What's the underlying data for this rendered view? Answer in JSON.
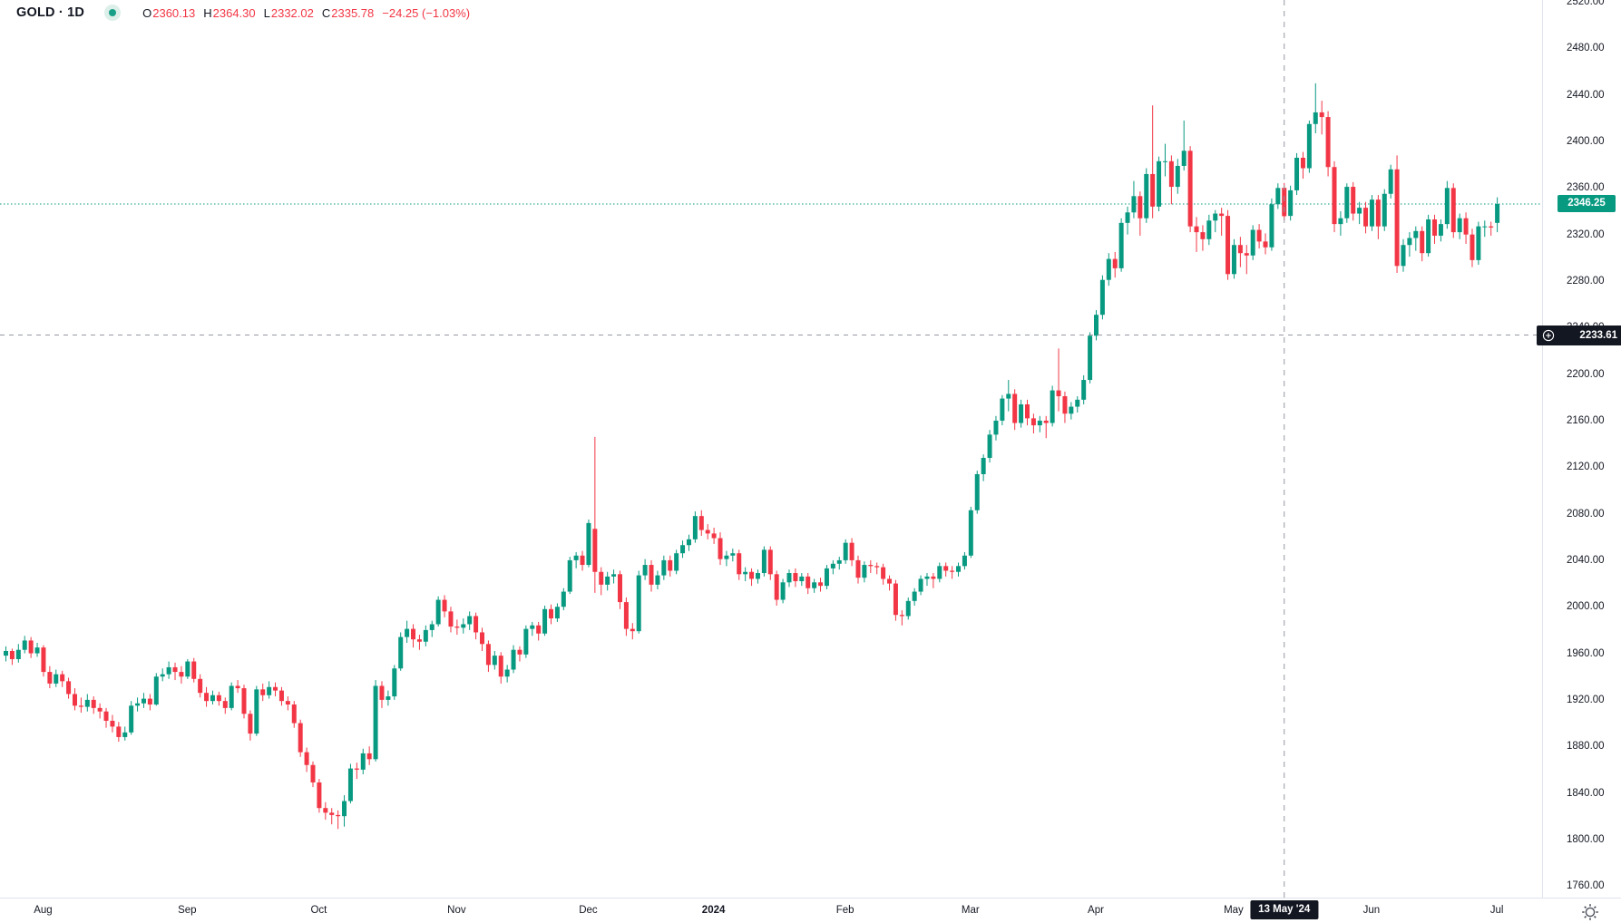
{
  "header": {
    "symbol_title": "GOLD · 1D",
    "ohlc": {
      "o_label": "O",
      "o": "2360.13",
      "h_label": "H",
      "h": "2364.30",
      "l_label": "L",
      "l": "2332.02",
      "c_label": "C",
      "c": "2335.78",
      "change": "−24.25 (−1.03%)"
    }
  },
  "price_axis": {
    "last_price_label": "2346.25"
  },
  "crosshair": {
    "price_label": "2233.61",
    "price_value": 2233.61,
    "date_label": "13 May '24",
    "candle_index": 204
  },
  "colors": {
    "up": "#089981",
    "down": "#f23645",
    "crosshair": "#9598a1",
    "badge_dark": "#131722",
    "axis_text": "#131722",
    "last_price_line": "#089981"
  },
  "chart_data": {
    "type": "candlestick",
    "title": "GOLD · 1D",
    "grid": false,
    "legend_position": "top-left",
    "price_axis_side": "right",
    "price_ticks": [
      2520,
      2480,
      2440,
      2400,
      2360,
      2320,
      2280,
      2240,
      2200,
      2160,
      2120,
      2080,
      2040,
      2000,
      1960,
      1920,
      1880,
      1840,
      1800,
      1760
    ],
    "price_range_top": 2521.6,
    "price_range_bottom": 1750,
    "last_close": 2346.25,
    "month_ticks": [
      {
        "label": "Aug",
        "index": 6
      },
      {
        "label": "Sep",
        "index": 29
      },
      {
        "label": "Oct",
        "index": 50
      },
      {
        "label": "Nov",
        "index": 72
      },
      {
        "label": "Dec",
        "index": 93
      },
      {
        "label": "2024",
        "index": 113,
        "bold": true
      },
      {
        "label": "Feb",
        "index": 134
      },
      {
        "label": "Mar",
        "index": 154
      },
      {
        "label": "Apr",
        "index": 174
      },
      {
        "label": "May",
        "index": 196
      },
      {
        "label": "Jun",
        "index": 218
      },
      {
        "label": "Jul",
        "index": 238
      }
    ],
    "candles": [
      [
        1958,
        1966,
        1953,
        1962
      ],
      [
        1962,
        1964,
        1950,
        1955
      ],
      [
        1955,
        1968,
        1952,
        1963
      ],
      [
        1963,
        1975,
        1960,
        1971
      ],
      [
        1971,
        1974,
        1956,
        1960
      ],
      [
        1960,
        1969,
        1957,
        1965
      ],
      [
        1965,
        1967,
        1940,
        1944
      ],
      [
        1944,
        1949,
        1930,
        1934
      ],
      [
        1934,
        1946,
        1931,
        1942
      ],
      [
        1942,
        1945,
        1931,
        1936
      ],
      [
        1936,
        1939,
        1921,
        1925
      ],
      [
        1925,
        1930,
        1911,
        1915
      ],
      [
        1915,
        1922,
        1909,
        1914
      ],
      [
        1914,
        1925,
        1910,
        1920
      ],
      [
        1920,
        1923,
        1908,
        1913
      ],
      [
        1913,
        1917,
        1904,
        1910
      ],
      [
        1910,
        1913,
        1896,
        1902
      ],
      [
        1902,
        1907,
        1892,
        1897
      ],
      [
        1897,
        1901,
        1884,
        1888
      ],
      [
        1888,
        1897,
        1885,
        1892
      ],
      [
        1892,
        1919,
        1890,
        1915
      ],
      [
        1915,
        1922,
        1910,
        1917
      ],
      [
        1917,
        1926,
        1913,
        1921
      ],
      [
        1921,
        1925,
        1911,
        1916
      ],
      [
        1916,
        1943,
        1915,
        1940
      ],
      [
        1940,
        1947,
        1936,
        1942
      ],
      [
        1942,
        1953,
        1938,
        1948
      ],
      [
        1948,
        1952,
        1937,
        1944
      ],
      [
        1944,
        1949,
        1934,
        1940
      ],
      [
        1940,
        1955,
        1938,
        1953
      ],
      [
        1953,
        1956,
        1935,
        1938
      ],
      [
        1938,
        1942,
        1922,
        1926
      ],
      [
        1926,
        1931,
        1914,
        1919
      ],
      [
        1919,
        1928,
        1916,
        1924
      ],
      [
        1924,
        1927,
        1915,
        1919
      ],
      [
        1919,
        1922,
        1908,
        1913
      ],
      [
        1913,
        1935,
        1911,
        1932
      ],
      [
        1932,
        1937,
        1926,
        1930
      ],
      [
        1930,
        1933,
        1904,
        1908
      ],
      [
        1908,
        1911,
        1885,
        1891
      ],
      [
        1891,
        1932,
        1889,
        1929
      ],
      [
        1929,
        1934,
        1919,
        1924
      ],
      [
        1924,
        1936,
        1921,
        1931
      ],
      [
        1931,
        1935,
        1923,
        1928
      ],
      [
        1928,
        1931,
        1915,
        1919
      ],
      [
        1919,
        1923,
        1911,
        1916
      ],
      [
        1916,
        1919,
        1896,
        1900
      ],
      [
        1900,
        1903,
        1871,
        1875
      ],
      [
        1875,
        1879,
        1858,
        1864
      ],
      [
        1864,
        1867,
        1845,
        1849
      ],
      [
        1849,
        1852,
        1823,
        1827
      ],
      [
        1827,
        1832,
        1817,
        1823
      ],
      [
        1823,
        1827,
        1813,
        1821
      ],
      [
        1821,
        1825,
        1809,
        1820
      ],
      [
        1820,
        1838,
        1811,
        1833
      ],
      [
        1833,
        1865,
        1831,
        1861
      ],
      [
        1861,
        1866,
        1852,
        1860
      ],
      [
        1860,
        1878,
        1856,
        1874
      ],
      [
        1874,
        1880,
        1864,
        1869
      ],
      [
        1869,
        1937,
        1867,
        1932
      ],
      [
        1932,
        1936,
        1913,
        1920
      ],
      [
        1920,
        1928,
        1915,
        1923
      ],
      [
        1923,
        1950,
        1920,
        1947
      ],
      [
        1947,
        1978,
        1945,
        1974
      ],
      [
        1974,
        1988,
        1969,
        1981
      ],
      [
        1981,
        1985,
        1965,
        1972
      ],
      [
        1972,
        1976,
        1963,
        1970
      ],
      [
        1970,
        1984,
        1966,
        1980
      ],
      [
        1980,
        1988,
        1974,
        1985
      ],
      [
        1985,
        2009,
        1983,
        2006
      ],
      [
        2006,
        2010,
        1991,
        1996
      ],
      [
        1996,
        2000,
        1978,
        1983
      ],
      [
        1983,
        1989,
        1976,
        1982
      ],
      [
        1982,
        1990,
        1977,
        1985
      ],
      [
        1985,
        1996,
        1980,
        1992
      ],
      [
        1992,
        1995,
        1972,
        1978
      ],
      [
        1978,
        1982,
        1962,
        1968
      ],
      [
        1968,
        1971,
        1944,
        1950
      ],
      [
        1950,
        1962,
        1946,
        1958
      ],
      [
        1958,
        1961,
        1934,
        1940
      ],
      [
        1940,
        1950,
        1935,
        1946
      ],
      [
        1946,
        1967,
        1943,
        1963
      ],
      [
        1963,
        1966,
        1953,
        1959
      ],
      [
        1959,
        1984,
        1956,
        1981
      ],
      [
        1981,
        1987,
        1975,
        1984
      ],
      [
        1984,
        1987,
        1971,
        1977
      ],
      [
        1977,
        2001,
        1975,
        1998
      ],
      [
        1998,
        2002,
        1985,
        1990
      ],
      [
        1990,
        2003,
        1987,
        2000
      ],
      [
        2000,
        2016,
        1997,
        2013
      ],
      [
        2013,
        2043,
        2011,
        2040
      ],
      [
        2040,
        2047,
        2033,
        2044
      ],
      [
        2044,
        2048,
        2031,
        2036
      ],
      [
        2036,
        2075,
        2034,
        2072
      ],
      [
        2067,
        2146,
        2012,
        2030
      ],
      [
        2030,
        2034,
        2010,
        2019
      ],
      [
        2019,
        2030,
        2014,
        2026
      ],
      [
        2026,
        2032,
        2020,
        2028
      ],
      [
        2028,
        2031,
        1998,
        2004
      ],
      [
        2004,
        2008,
        1975,
        1981
      ],
      [
        1981,
        1986,
        1972,
        1979
      ],
      [
        1979,
        2031,
        1977,
        2027
      ],
      [
        2027,
        2041,
        2023,
        2036
      ],
      [
        2036,
        2040,
        2013,
        2019
      ],
      [
        2019,
        2031,
        2015,
        2027
      ],
      [
        2027,
        2044,
        2023,
        2040
      ],
      [
        2040,
        2044,
        2026,
        2031
      ],
      [
        2031,
        2049,
        2028,
        2046
      ],
      [
        2046,
        2057,
        2042,
        2053
      ],
      [
        2053,
        2062,
        2048,
        2058
      ],
      [
        2058,
        2082,
        2055,
        2078
      ],
      [
        2078,
        2083,
        2061,
        2066
      ],
      [
        2066,
        2071,
        2058,
        2063
      ],
      [
        2063,
        2068,
        2054,
        2059
      ],
      [
        2059,
        2064,
        2036,
        2041
      ],
      [
        2041,
        2048,
        2035,
        2044
      ],
      [
        2044,
        2050,
        2039,
        2046
      ],
      [
        2046,
        2049,
        2023,
        2028
      ],
      [
        2028,
        2034,
        2022,
        2030
      ],
      [
        2030,
        2033,
        2018,
        2024
      ],
      [
        2024,
        2032,
        2020,
        2029
      ],
      [
        2029,
        2052,
        2026,
        2049
      ],
      [
        2049,
        2052,
        2023,
        2028
      ],
      [
        2028,
        2031,
        2001,
        2006
      ],
      [
        2006,
        2024,
        2003,
        2021
      ],
      [
        2021,
        2032,
        2017,
        2029
      ],
      [
        2029,
        2033,
        2017,
        2022
      ],
      [
        2022,
        2029,
        2018,
        2026
      ],
      [
        2026,
        2029,
        2011,
        2016
      ],
      [
        2016,
        2024,
        2012,
        2021
      ],
      [
        2021,
        2025,
        2013,
        2018
      ],
      [
        2018,
        2036,
        2015,
        2033
      ],
      [
        2033,
        2040,
        2028,
        2037
      ],
      [
        2037,
        2043,
        2032,
        2040
      ],
      [
        2040,
        2058,
        2037,
        2055
      ],
      [
        2055,
        2059,
        2035,
        2040
      ],
      [
        2040,
        2044,
        2020,
        2025
      ],
      [
        2025,
        2039,
        2021,
        2036
      ],
      [
        2036,
        2040,
        2029,
        2035
      ],
      [
        2035,
        2038,
        2028,
        2034
      ],
      [
        2034,
        2037,
        2019,
        2024
      ],
      [
        2024,
        2027,
        2014,
        2020
      ],
      [
        2020,
        2023,
        1988,
        1993
      ],
      [
        1993,
        1997,
        1984,
        1992
      ],
      [
        1992,
        2008,
        1989,
        2005
      ],
      [
        2005,
        2016,
        2001,
        2013
      ],
      [
        2013,
        2027,
        2010,
        2024
      ],
      [
        2024,
        2029,
        2018,
        2026
      ],
      [
        2026,
        2029,
        2016,
        2024
      ],
      [
        2024,
        2038,
        2021,
        2035
      ],
      [
        2035,
        2038,
        2026,
        2031
      ],
      [
        2031,
        2035,
        2024,
        2030
      ],
      [
        2030,
        2038,
        2026,
        2035
      ],
      [
        2035,
        2047,
        2032,
        2044
      ],
      [
        2044,
        2086,
        2042,
        2083
      ],
      [
        2083,
        2117,
        2080,
        2114
      ],
      [
        2114,
        2131,
        2108,
        2128
      ],
      [
        2128,
        2152,
        2124,
        2148
      ],
      [
        2148,
        2164,
        2143,
        2160
      ],
      [
        2160,
        2182,
        2156,
        2179
      ],
      [
        2179,
        2195,
        2168,
        2183
      ],
      [
        2183,
        2187,
        2152,
        2158
      ],
      [
        2158,
        2178,
        2154,
        2174
      ],
      [
        2174,
        2178,
        2156,
        2162
      ],
      [
        2162,
        2166,
        2149,
        2156
      ],
      [
        2156,
        2164,
        2150,
        2160
      ],
      [
        2160,
        2164,
        2145,
        2158
      ],
      [
        2158,
        2190,
        2155,
        2186
      ],
      [
        2186,
        2222,
        2168,
        2181
      ],
      [
        2181,
        2185,
        2158,
        2166
      ],
      [
        2166,
        2176,
        2161,
        2172
      ],
      [
        2172,
        2181,
        2167,
        2178
      ],
      [
        2178,
        2199,
        2174,
        2195
      ],
      [
        2195,
        2236,
        2192,
        2233
      ],
      [
        2233,
        2255,
        2229,
        2251
      ],
      [
        2251,
        2285,
        2247,
        2281
      ],
      [
        2281,
        2304,
        2276,
        2299
      ],
      [
        2299,
        2305,
        2283,
        2291
      ],
      [
        2291,
        2334,
        2288,
        2330
      ],
      [
        2330,
        2344,
        2320,
        2339
      ],
      [
        2339,
        2366,
        2334,
        2353
      ],
      [
        2353,
        2357,
        2319,
        2334
      ],
      [
        2334,
        2377,
        2330,
        2372
      ],
      [
        2372,
        2431,
        2334,
        2344
      ],
      [
        2344,
        2387,
        2340,
        2383
      ],
      [
        2383,
        2398,
        2370,
        2383
      ],
      [
        2383,
        2388,
        2346,
        2361
      ],
      [
        2361,
        2385,
        2355,
        2379
      ],
      [
        2379,
        2418,
        2375,
        2392
      ],
      [
        2392,
        2396,
        2322,
        2327
      ],
      [
        2327,
        2335,
        2305,
        2322
      ],
      [
        2322,
        2328,
        2306,
        2316
      ],
      [
        2316,
        2337,
        2311,
        2332
      ],
      [
        2332,
        2341,
        2322,
        2338
      ],
      [
        2338,
        2343,
        2319,
        2336
      ],
      [
        2336,
        2341,
        2281,
        2286
      ],
      [
        2286,
        2316,
        2282,
        2311
      ],
      [
        2311,
        2318,
        2292,
        2304
      ],
      [
        2304,
        2311,
        2286,
        2302
      ],
      [
        2302,
        2328,
        2298,
        2324
      ],
      [
        2324,
        2329,
        2308,
        2314
      ],
      [
        2314,
        2321,
        2303,
        2309
      ],
      [
        2309,
        2351,
        2306,
        2346
      ],
      [
        2346,
        2364,
        2342,
        2360
      ],
      [
        2360.13,
        2364.3,
        2332.02,
        2335.78
      ],
      [
        2336,
        2362,
        2332,
        2358
      ],
      [
        2358,
        2390,
        2354,
        2386
      ],
      [
        2386,
        2391,
        2368,
        2377
      ],
      [
        2377,
        2418,
        2373,
        2415
      ],
      [
        2415,
        2450,
        2407,
        2425
      ],
      [
        2425,
        2435,
        2406,
        2421
      ],
      [
        2421,
        2426,
        2370,
        2378
      ],
      [
        2378,
        2383,
        2322,
        2329
      ],
      [
        2329,
        2340,
        2319,
        2334
      ],
      [
        2334,
        2364,
        2330,
        2361
      ],
      [
        2361,
        2365,
        2332,
        2338
      ],
      [
        2338,
        2348,
        2329,
        2343
      ],
      [
        2343,
        2348,
        2321,
        2327
      ],
      [
        2327,
        2354,
        2323,
        2350
      ],
      [
        2350,
        2354,
        2316,
        2327
      ],
      [
        2327,
        2359,
        2323,
        2355
      ],
      [
        2355,
        2380,
        2351,
        2376
      ],
      [
        2376,
        2388,
        2287,
        2293
      ],
      [
        2293,
        2316,
        2288,
        2311
      ],
      [
        2311,
        2322,
        2301,
        2317
      ],
      [
        2317,
        2327,
        2306,
        2323
      ],
      [
        2323,
        2327,
        2297,
        2304
      ],
      [
        2304,
        2337,
        2301,
        2333
      ],
      [
        2333,
        2337,
        2312,
        2319
      ],
      [
        2319,
        2333,
        2314,
        2329
      ],
      [
        2329,
        2366,
        2325,
        2360
      ],
      [
        2360,
        2364,
        2317,
        2322
      ],
      [
        2322,
        2338,
        2316,
        2334
      ],
      [
        2334,
        2339,
        2312,
        2320
      ],
      [
        2320,
        2325,
        2292,
        2298
      ],
      [
        2298,
        2331,
        2294,
        2327
      ],
      [
        2327,
        2332,
        2318,
        2327
      ],
      [
        2327,
        2331,
        2319,
        2326
      ],
      [
        2330,
        2352,
        2322,
        2346.25
      ]
    ]
  }
}
